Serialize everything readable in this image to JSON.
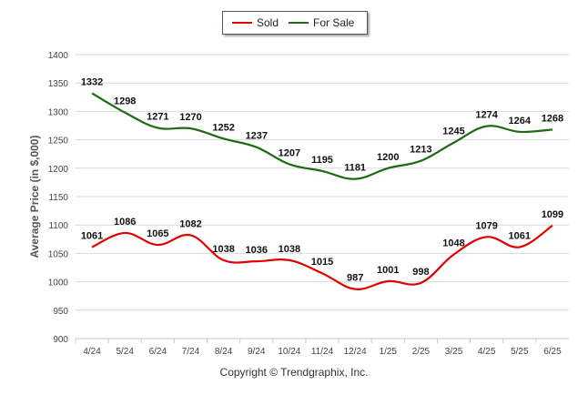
{
  "chart_data": {
    "type": "line",
    "categories": [
      "4/24",
      "5/24",
      "6/24",
      "7/24",
      "8/24",
      "9/24",
      "10/24",
      "11/24",
      "12/24",
      "1/25",
      "2/25",
      "3/25",
      "4/25",
      "5/25",
      "6/25"
    ],
    "series": [
      {
        "name": "Sold",
        "color": "#e00000",
        "values": [
          1061,
          1086,
          1065,
          1082,
          1038,
          1036,
          1038,
          1015,
          987,
          1001,
          998,
          1048,
          1079,
          1061,
          1099
        ]
      },
      {
        "name": "For Sale",
        "color": "#1e6b14",
        "values": [
          1332,
          1298,
          1271,
          1270,
          1252,
          1237,
          1207,
          1195,
          1181,
          1200,
          1213,
          1245,
          1274,
          1264,
          1268
        ]
      }
    ],
    "ylabel": "Average Price (in $,000)",
    "ylim": [
      900,
      1400
    ],
    "yticks": [
      900,
      950,
      1000,
      1050,
      1100,
      1150,
      1200,
      1250,
      1300,
      1350,
      1400
    ],
    "grid": true,
    "legend_position": "top-center"
  },
  "footer": {
    "copyright": "Copyright © Trendgraphix, Inc."
  }
}
